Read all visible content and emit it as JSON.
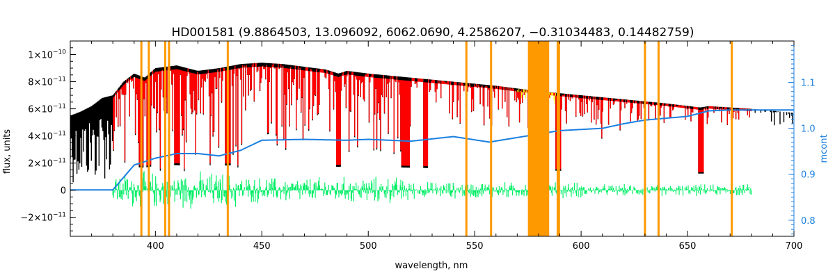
{
  "chart_data": {
    "type": "line",
    "title": "HD001581    (9.8864503, 13.096092, 6062.0690, 4.2586207, −0.31034483, 0.14482759)",
    "xlabel": "wavelength, nm",
    "ylabel": "flux, units",
    "y2label": "mcont",
    "xlim": [
      360,
      700
    ],
    "ylim": [
      -3.4e-11,
      1.1e-10
    ],
    "y2lim": [
      0.765,
      1.19
    ],
    "x_ticks": [
      400,
      450,
      500,
      550,
      600,
      650,
      700
    ],
    "x_tick_labels": [
      "400",
      "450",
      "500",
      "550",
      "600",
      "650",
      "700"
    ],
    "y_ticks": [
      -2e-11,
      0,
      2e-11,
      4e-11,
      6e-11,
      8e-11,
      1e-10
    ],
    "y_tick_labels": [
      {
        "mant": "−2×10",
        "exp": "−11"
      },
      {
        "mant": "0",
        "exp": ""
      },
      {
        "mant": "2×10",
        "exp": "−11"
      },
      {
        "mant": "4×10",
        "exp": "−11"
      },
      {
        "mant": "6×10",
        "exp": "−11"
      },
      {
        "mant": "8×10",
        "exp": "−11"
      },
      {
        "mant": "1×10",
        "exp": "−10"
      }
    ],
    "y2_ticks": [
      0.8,
      0.9,
      1.0,
      1.1
    ],
    "y2_tick_labels": [
      "0.8",
      "0.9",
      "1.0",
      "1.1"
    ],
    "colors": {
      "observed": "#000000",
      "model": "#ff0000",
      "residual": "#00ee66",
      "mcont": "#1a7fe0",
      "mask": "#ff9900",
      "masked_model": "#ffff00"
    },
    "mask_lines": [
      393.4,
      396.9,
      404.6,
      406.4,
      434.0,
      546.1,
      557.7,
      589.0,
      589.6,
      630.0,
      636.4,
      670.8
    ],
    "mask_band": [
      575,
      585
    ],
    "series": [
      {
        "key": "observed",
        "x": [
          360,
          365,
          370,
          375,
          380,
          385,
          390,
          395,
          400,
          410,
          420,
          430,
          440,
          450,
          460,
          470,
          480,
          486,
          490,
          500,
          520,
          540,
          560,
          580,
          600,
          620,
          640,
          656,
          660,
          680,
          700
        ],
        "y": [
          5.5e-11,
          5.8e-11,
          6.2e-11,
          6.8e-11,
          7e-11,
          8e-11,
          8.6e-11,
          8.3e-11,
          9e-11,
          9.2e-11,
          8.8e-11,
          9e-11,
          9.3e-11,
          9.4e-11,
          9.3e-11,
          9.1e-11,
          8.9e-11,
          8.6e-11,
          8.8e-11,
          8.6e-11,
          8.3e-11,
          8e-11,
          7.7e-11,
          7.3e-11,
          7e-11,
          6.7e-11,
          6.4e-11,
          6.1e-11,
          6.2e-11,
          6e-11,
          5.7e-11
        ]
      },
      {
        "key": "mcont",
        "x": [
          360,
          380,
          390,
          400,
          410,
          420,
          430,
          440,
          450,
          470,
          490,
          500,
          520,
          540,
          557,
          570,
          590,
          610,
          620,
          630,
          640,
          650,
          660,
          670,
          680,
          690,
          700
        ],
        "y": [
          0.866,
          0.866,
          0.92,
          0.935,
          0.945,
          0.945,
          0.94,
          0.952,
          0.974,
          0.976,
          0.974,
          0.976,
          0.972,
          0.982,
          0.97,
          0.98,
          0.995,
          1.0,
          1.01,
          1.018,
          1.022,
          1.026,
          1.038,
          1.04,
          1.04,
          1.04,
          1.04
        ]
      }
    ]
  }
}
